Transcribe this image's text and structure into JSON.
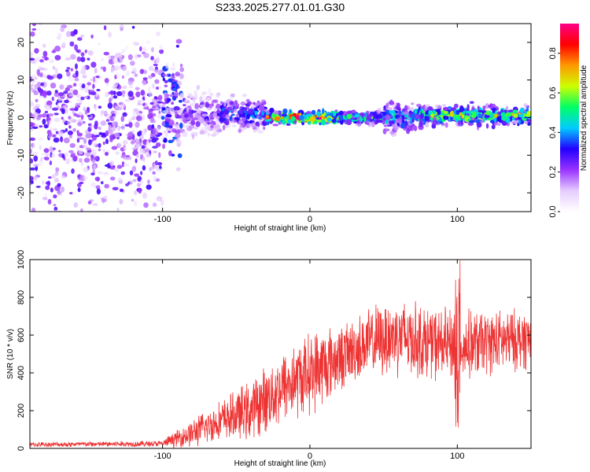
{
  "title": "S233.2025.277.01.01.G30",
  "chart_data": [
    {
      "type": "heatmap",
      "name": "spectrogram",
      "xlabel": "Height of straight line (km)",
      "ylabel": "Frequency (Hz)",
      "xlim": [
        -190,
        150
      ],
      "ylim": [
        -25,
        25
      ],
      "xticks": [
        -100,
        0,
        100
      ],
      "yticks": [
        -20,
        -10,
        0,
        10,
        20
      ],
      "colorbar": {
        "label": "Normalized spectral amplitude",
        "range": [
          0,
          0.95
        ],
        "ticks": [
          0.0,
          0.2,
          0.4,
          0.6,
          0.8
        ],
        "colors": [
          "#ffffff",
          "#e6ccff",
          "#9933ff",
          "#2200ff",
          "#00ccff",
          "#00ff66",
          "#ccff00",
          "#ff9900",
          "#ff0000",
          "#ff0088"
        ]
      },
      "bands": [
        {
          "x_from": -190,
          "x_to": -100,
          "center": 0,
          "halfwidth": 25,
          "amplitude": 0.15
        },
        {
          "x_from": -100,
          "x_to": -85,
          "center": 2,
          "halfwidth": 12,
          "amplitude": 0.2
        },
        {
          "x_from": -85,
          "x_to": -60,
          "center": 1,
          "halfwidth": 6,
          "amplitude": 0.25
        },
        {
          "x_from": -60,
          "x_to": -30,
          "center": 1,
          "halfwidth": 4,
          "amplitude": 0.35
        },
        {
          "x_from": -30,
          "x_to": 20,
          "center": 0,
          "halfwidth": 1.5,
          "amplitude": 0.75
        },
        {
          "x_from": 20,
          "x_to": 50,
          "center": 0,
          "halfwidth": 1.5,
          "amplitude": 0.45
        },
        {
          "x_from": 50,
          "x_to": 70,
          "center": 0,
          "halfwidth": 4,
          "amplitude": 0.4
        },
        {
          "x_from": 70,
          "x_to": 150,
          "center": 0.5,
          "halfwidth": 2.5,
          "amplitude": 0.55
        }
      ]
    },
    {
      "type": "line",
      "name": "snr",
      "xlabel": "Height of straight line (km)",
      "ylabel": "SNR (10 * v/v)",
      "xlim": [
        -190,
        150
      ],
      "ylim": [
        0,
        1000
      ],
      "xticks": [
        -100,
        0,
        100
      ],
      "yticks": [
        0,
        200,
        400,
        600,
        800,
        1000
      ],
      "color": "#ee3333",
      "envelope": {
        "x": [
          -190,
          -100,
          -95,
          -80,
          -60,
          -40,
          -20,
          0,
          10,
          20,
          40,
          60,
          80,
          100,
          120,
          150
        ],
        "mean": [
          20,
          25,
          40,
          80,
          150,
          200,
          320,
          400,
          440,
          480,
          560,
          600,
          560,
          540,
          560,
          580
        ],
        "spread": [
          12,
          15,
          30,
          70,
          100,
          150,
          180,
          200,
          200,
          160,
          170,
          200,
          180,
          180,
          160,
          150
        ]
      }
    }
  ]
}
